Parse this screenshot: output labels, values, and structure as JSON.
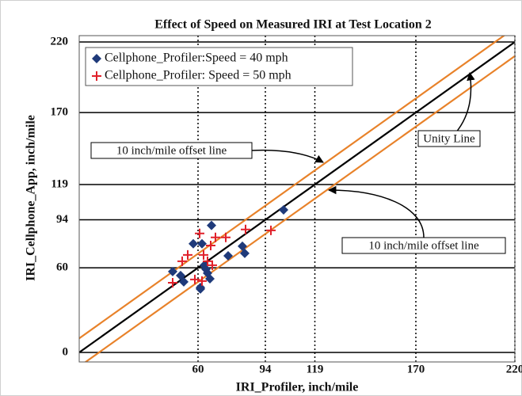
{
  "chart_data": {
    "type": "scatter",
    "title": "Effect of Speed on Measured IRI at Test Location 2",
    "x_label": "IRI_Profiler, inch/mile",
    "y_label": "IRI_Cellphone_App, inch/mile",
    "xlim": [
      0,
      220
    ],
    "ylim": [
      0,
      220
    ],
    "xticks": [
      60,
      94,
      119,
      170,
      220
    ],
    "yticks": [
      0,
      60,
      94,
      119,
      170,
      220
    ],
    "grid": true,
    "legend": "upper left",
    "series": [
      {
        "name": "Cellphone_Profiler:Speed = 40 mph",
        "color": "#1f3a7a",
        "marker": "diamond",
        "x": [
          47.2,
          51.2,
          52.8,
          57.6,
          62,
          61.2,
          63.2,
          66,
          64.8,
          66.8,
          75.2,
          82.4,
          83.6,
          103.2,
          61.2,
          64
        ],
        "values": [
          57.3,
          54.5,
          50,
          77,
          77,
          45,
          61.8,
          52.2,
          56.2,
          90,
          68.5,
          75.3,
          70.2,
          101,
          46,
          59
        ]
      },
      {
        "name": "Cellphone_Profiler: Speed = 50 mph",
        "color": "#e0202a",
        "marker": "plus",
        "x": [
          47.2,
          52,
          54.8,
          60.8,
          62,
          62.8,
          64.8,
          67.2,
          68.8,
          74,
          84,
          96.8,
          58.4,
          66.4
        ],
        "values": [
          49.4,
          64.6,
          69.1,
          84.3,
          50.6,
          69.1,
          64.6,
          61.8,
          81.5,
          81.5,
          87.1,
          86.5,
          51.7,
          75.8
        ]
      }
    ],
    "reference_lines": [
      {
        "offset": 0,
        "color": "#000000"
      },
      {
        "offset": 10,
        "color": "#e8822a"
      },
      {
        "offset": -10,
        "color": "#e8822a"
      }
    ],
    "annotations": [
      "Unity Line",
      "10 inch/mile offset line",
      "10 inch/mile offset line"
    ]
  }
}
